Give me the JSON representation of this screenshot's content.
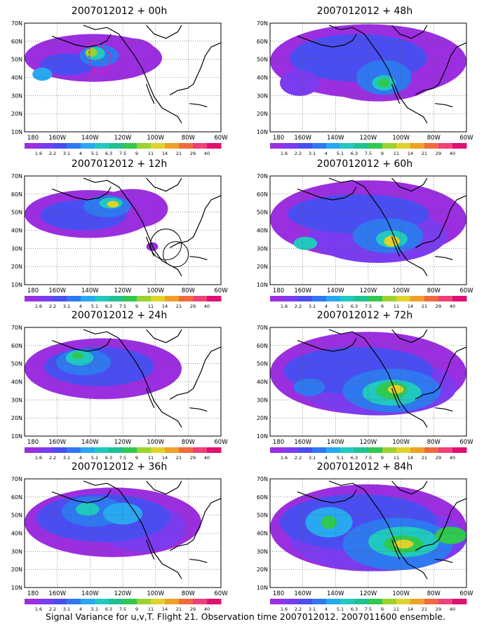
{
  "panels": [
    {
      "title": "2007012012 + 00h"
    },
    {
      "title": "2007012012 + 48h"
    },
    {
      "title": "2007012012 + 12h"
    },
    {
      "title": "2007012012 + 60h"
    },
    {
      "title": "2007012012 + 24h"
    },
    {
      "title": "2007012012 + 72h"
    },
    {
      "title": "2007012012 + 36h"
    },
    {
      "title": "2007012012 + 84h"
    }
  ],
  "axes": {
    "lat_labels": [
      "70N",
      "60N",
      "50N",
      "40N",
      "30N",
      "20N",
      "10N"
    ],
    "lon_labels": [
      "180",
      "160W",
      "140W",
      "120W",
      "100W",
      "80W",
      "60W"
    ]
  },
  "colorbar": {
    "labels": [
      "1.6",
      "2.2",
      "3.1",
      "4",
      "5.1",
      "6.3",
      "7.5",
      "9",
      "11",
      "14",
      "21",
      "29",
      "40"
    ],
    "colors": [
      "#9b2fe0",
      "#7b3cf0",
      "#4a4ef0",
      "#2f78f0",
      "#28a8f0",
      "#20c8c0",
      "#20c090",
      "#30c850",
      "#9bd230",
      "#e0d22a",
      "#f0a028",
      "#f06a40",
      "#f0407a",
      "#e01070"
    ]
  },
  "footer": {
    "caption": "Signal Variance for u,v,T. Flight 21. Observation time 2007012012. 2007011600 ensemble."
  }
}
